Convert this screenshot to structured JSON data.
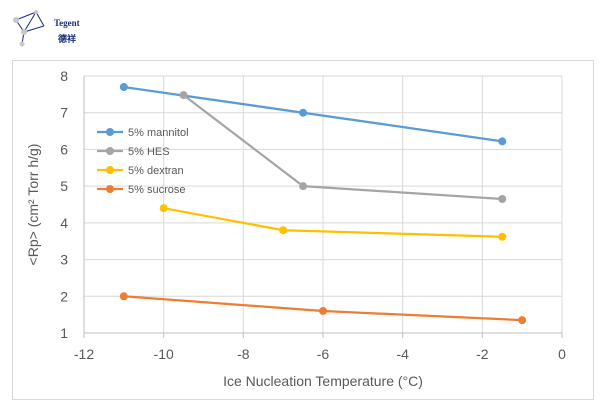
{
  "logo": {
    "name_en": "Tegent",
    "name_cn": "德祥"
  },
  "chart_data": {
    "type": "line",
    "title": "",
    "xlabel": "Ice Nucleation Temperature (°C)",
    "ylabel": "<Rp> (cm² Torr h/g)",
    "xlim": [
      -12,
      0
    ],
    "ylim": [
      1,
      8
    ],
    "xticks": [
      -12,
      -10,
      -8,
      -6,
      -4,
      -2,
      0
    ],
    "yticks": [
      1,
      2,
      3,
      4,
      5,
      6,
      7,
      8
    ],
    "xtick_labels": [
      "-12",
      "-10",
      "-8",
      "-6",
      "-4",
      "-2",
      "0"
    ],
    "ytick_labels": [
      "1",
      "2",
      "3",
      "4",
      "5",
      "6",
      "7",
      "8"
    ],
    "grid": true,
    "legend_position": "upper-left inside",
    "series": [
      {
        "name": "5% mannitol",
        "color": "#5b9bd5",
        "x": [
          -11,
          -6.5,
          -1.5
        ],
        "y": [
          7.7,
          7.0,
          6.22
        ]
      },
      {
        "name": "5% HES",
        "color": "#a5a5a5",
        "x": [
          -9.5,
          -6.5,
          -1.5
        ],
        "y": [
          7.48,
          5.0,
          4.65
        ]
      },
      {
        "name": "5% dextran",
        "color": "#ffc000",
        "x": [
          -10,
          -7,
          -1.5
        ],
        "y": [
          4.4,
          3.8,
          3.62
        ]
      },
      {
        "name": "5% sucrose",
        "color": "#ed7d31",
        "x": [
          -11,
          -6,
          -1
        ],
        "y": [
          2.0,
          1.6,
          1.35
        ]
      }
    ]
  }
}
